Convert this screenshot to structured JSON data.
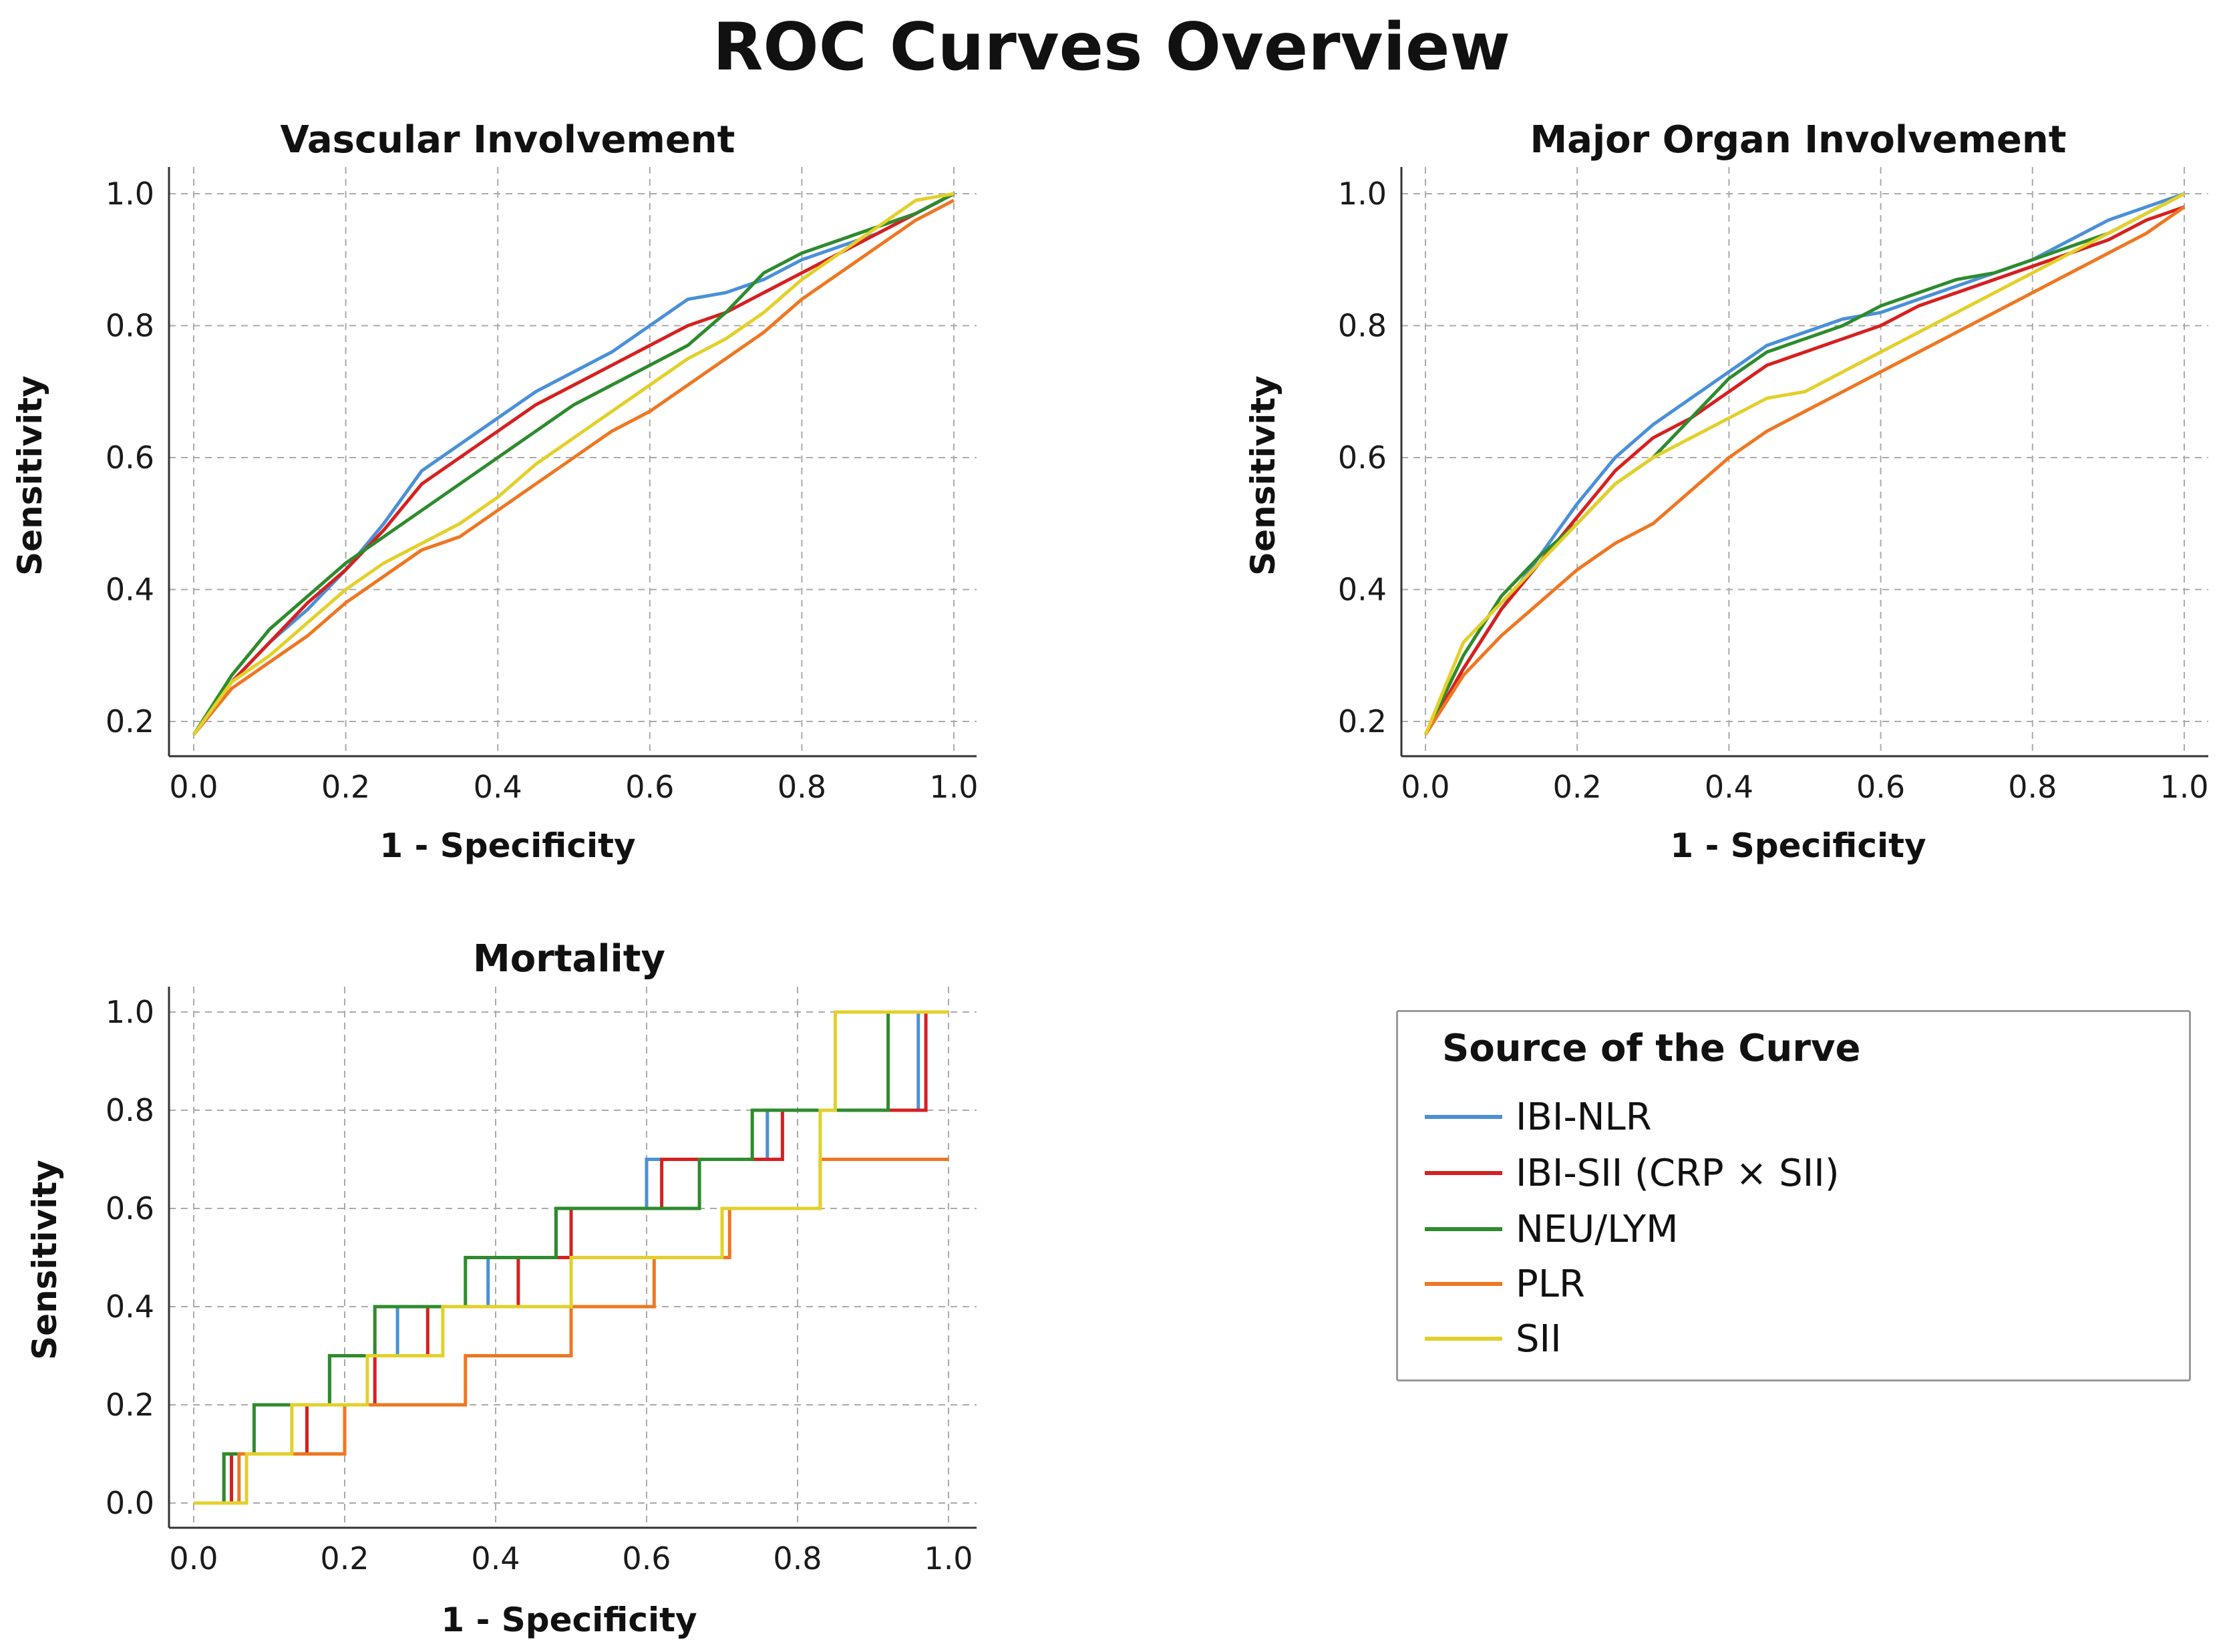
{
  "title": "ROC Curves Overview",
  "legend": {
    "title": "Source of the Curve",
    "items": [
      {
        "label": "IBI-NLR",
        "color": "#4a90d9"
      },
      {
        "label": "IBI-SII (CRP × SII)",
        "color": "#d62020"
      },
      {
        "label": "NEU/LYM",
        "color": "#2e8b2e"
      },
      {
        "label": "PLR",
        "color": "#ee7722"
      },
      {
        "label": "SII",
        "color": "#e3d02a"
      }
    ]
  },
  "chart_data": [
    {
      "type": "line",
      "title": "Vascular Involvement",
      "xlabel": "1 - Specificity",
      "ylabel": "Sensitivity",
      "xlim": [
        0,
        1
      ],
      "ylim": [
        0.16,
        1.0
      ],
      "xticks": [
        "0.0",
        "0.2",
        "0.4",
        "0.6",
        "0.8",
        "1.0"
      ],
      "yticks": [
        "0.2",
        "0.4",
        "0.6",
        "0.8",
        "1.0"
      ],
      "grid": true,
      "series": [
        {
          "name": "IBI-NLR",
          "x": [
            0,
            0.05,
            0.1,
            0.15,
            0.2,
            0.25,
            0.3,
            0.35,
            0.4,
            0.45,
            0.5,
            0.55,
            0.6,
            0.65,
            0.7,
            0.75,
            0.8,
            0.85,
            0.9,
            0.95,
            1.0
          ],
          "y": [
            0.18,
            0.26,
            0.32,
            0.37,
            0.43,
            0.5,
            0.58,
            0.62,
            0.66,
            0.7,
            0.73,
            0.76,
            0.8,
            0.84,
            0.85,
            0.87,
            0.9,
            0.92,
            0.94,
            0.97,
            1.0
          ]
        },
        {
          "name": "IBI-SII (CRP × SII)",
          "x": [
            0,
            0.05,
            0.1,
            0.15,
            0.2,
            0.25,
            0.3,
            0.35,
            0.4,
            0.45,
            0.5,
            0.55,
            0.6,
            0.65,
            0.7,
            0.75,
            0.8,
            0.85,
            0.9,
            0.95,
            1.0
          ],
          "y": [
            0.18,
            0.26,
            0.32,
            0.38,
            0.43,
            0.49,
            0.56,
            0.6,
            0.64,
            0.68,
            0.71,
            0.74,
            0.77,
            0.8,
            0.82,
            0.85,
            0.88,
            0.91,
            0.94,
            0.97,
            1.0
          ]
        },
        {
          "name": "NEU/LYM",
          "x": [
            0,
            0.05,
            0.1,
            0.15,
            0.2,
            0.25,
            0.3,
            0.35,
            0.4,
            0.45,
            0.5,
            0.55,
            0.6,
            0.65,
            0.7,
            0.75,
            0.8,
            0.85,
            0.9,
            0.95,
            1.0
          ],
          "y": [
            0.18,
            0.27,
            0.34,
            0.39,
            0.44,
            0.48,
            0.52,
            0.56,
            0.6,
            0.64,
            0.68,
            0.71,
            0.74,
            0.77,
            0.82,
            0.88,
            0.91,
            0.93,
            0.95,
            0.97,
            1.0
          ]
        },
        {
          "name": "PLR",
          "x": [
            0,
            0.05,
            0.1,
            0.15,
            0.2,
            0.25,
            0.3,
            0.35,
            0.4,
            0.45,
            0.5,
            0.55,
            0.6,
            0.65,
            0.7,
            0.75,
            0.8,
            0.85,
            0.9,
            0.95,
            1.0
          ],
          "y": [
            0.18,
            0.25,
            0.29,
            0.33,
            0.38,
            0.42,
            0.46,
            0.48,
            0.52,
            0.56,
            0.6,
            0.64,
            0.67,
            0.71,
            0.75,
            0.79,
            0.84,
            0.88,
            0.92,
            0.96,
            0.99
          ]
        },
        {
          "name": "SII",
          "x": [
            0,
            0.05,
            0.1,
            0.15,
            0.2,
            0.25,
            0.3,
            0.35,
            0.4,
            0.45,
            0.5,
            0.55,
            0.6,
            0.65,
            0.7,
            0.75,
            0.8,
            0.85,
            0.9,
            0.95,
            1.0
          ],
          "y": [
            0.18,
            0.26,
            0.3,
            0.35,
            0.4,
            0.44,
            0.47,
            0.5,
            0.54,
            0.59,
            0.63,
            0.67,
            0.71,
            0.75,
            0.78,
            0.82,
            0.87,
            0.91,
            0.95,
            0.99,
            1.0
          ]
        }
      ]
    },
    {
      "type": "line",
      "title": "Major Organ Involvement",
      "xlabel": "1 - Specificity",
      "ylabel": "Sensitivity",
      "xlim": [
        0,
        1
      ],
      "ylim": [
        0.16,
        1.0
      ],
      "xticks": [
        "0.0",
        "0.2",
        "0.4",
        "0.6",
        "0.8",
        "1.0"
      ],
      "yticks": [
        "0.2",
        "0.4",
        "0.6",
        "0.8",
        "1.0"
      ],
      "grid": true,
      "series": [
        {
          "name": "IBI-NLR",
          "x": [
            0,
            0.05,
            0.1,
            0.15,
            0.2,
            0.25,
            0.3,
            0.35,
            0.4,
            0.45,
            0.5,
            0.55,
            0.6,
            0.65,
            0.7,
            0.75,
            0.8,
            0.85,
            0.9,
            0.95,
            1.0
          ],
          "y": [
            0.18,
            0.28,
            0.37,
            0.45,
            0.53,
            0.6,
            0.65,
            0.69,
            0.73,
            0.77,
            0.79,
            0.81,
            0.82,
            0.84,
            0.86,
            0.88,
            0.9,
            0.93,
            0.96,
            0.98,
            1.0
          ]
        },
        {
          "name": "IBI-SII (CRP × SII)",
          "x": [
            0,
            0.05,
            0.1,
            0.15,
            0.2,
            0.25,
            0.3,
            0.35,
            0.4,
            0.45,
            0.5,
            0.55,
            0.6,
            0.65,
            0.7,
            0.75,
            0.8,
            0.85,
            0.9,
            0.95,
            1.0
          ],
          "y": [
            0.18,
            0.28,
            0.37,
            0.44,
            0.51,
            0.58,
            0.63,
            0.66,
            0.7,
            0.74,
            0.76,
            0.78,
            0.8,
            0.83,
            0.85,
            0.87,
            0.89,
            0.91,
            0.93,
            0.96,
            0.98
          ]
        },
        {
          "name": "NEU/LYM",
          "x": [
            0,
            0.05,
            0.1,
            0.15,
            0.2,
            0.25,
            0.3,
            0.35,
            0.4,
            0.45,
            0.5,
            0.55,
            0.6,
            0.65,
            0.7,
            0.75,
            0.8,
            0.85,
            0.9,
            0.95,
            1.0
          ],
          "y": [
            0.18,
            0.3,
            0.39,
            0.45,
            0.5,
            0.56,
            0.6,
            0.66,
            0.72,
            0.76,
            0.78,
            0.8,
            0.83,
            0.85,
            0.87,
            0.88,
            0.9,
            0.92,
            0.94,
            0.97,
            1.0
          ]
        },
        {
          "name": "PLR",
          "x": [
            0,
            0.05,
            0.1,
            0.15,
            0.2,
            0.25,
            0.3,
            0.35,
            0.4,
            0.45,
            0.5,
            0.55,
            0.6,
            0.65,
            0.7,
            0.75,
            0.8,
            0.85,
            0.9,
            0.95,
            1.0
          ],
          "y": [
            0.18,
            0.27,
            0.33,
            0.38,
            0.43,
            0.47,
            0.5,
            0.55,
            0.6,
            0.64,
            0.67,
            0.7,
            0.73,
            0.76,
            0.79,
            0.82,
            0.85,
            0.88,
            0.91,
            0.94,
            0.98
          ]
        },
        {
          "name": "SII",
          "x": [
            0,
            0.05,
            0.1,
            0.15,
            0.2,
            0.25,
            0.3,
            0.35,
            0.4,
            0.45,
            0.5,
            0.55,
            0.6,
            0.65,
            0.7,
            0.75,
            0.8,
            0.85,
            0.9,
            0.95,
            1.0
          ],
          "y": [
            0.18,
            0.32,
            0.38,
            0.44,
            0.5,
            0.56,
            0.6,
            0.63,
            0.66,
            0.69,
            0.7,
            0.73,
            0.76,
            0.79,
            0.82,
            0.85,
            0.88,
            0.91,
            0.94,
            0.97,
            1.0
          ]
        }
      ]
    },
    {
      "type": "line",
      "title": "Mortality",
      "xlabel": "1 - Specificity",
      "ylabel": "Sensitivity",
      "xlim": [
        0,
        1
      ],
      "ylim": [
        -0.04,
        1.0
      ],
      "xticks": [
        "0.0",
        "0.2",
        "0.4",
        "0.6",
        "0.8",
        "1.0"
      ],
      "yticks": [
        "0.0",
        "0.2",
        "0.4",
        "0.6",
        "0.8",
        "1.0"
      ],
      "grid": true,
      "series": [
        {
          "name": "IBI-NLR",
          "x": [
            0,
            0.04,
            0.04,
            0.15,
            0.15,
            0.18,
            0.18,
            0.27,
            0.27,
            0.39,
            0.39,
            0.48,
            0.48,
            0.6,
            0.6,
            0.76,
            0.76,
            0.96,
            0.96,
            1.0
          ],
          "y": [
            0,
            0,
            0.1,
            0.1,
            0.2,
            0.2,
            0.3,
            0.3,
            0.4,
            0.4,
            0.5,
            0.5,
            0.6,
            0.6,
            0.7,
            0.7,
            0.8,
            0.8,
            1.0,
            1.0
          ]
        },
        {
          "name": "IBI-SII (CRP × SII)",
          "x": [
            0,
            0.05,
            0.05,
            0.15,
            0.15,
            0.24,
            0.24,
            0.31,
            0.31,
            0.43,
            0.43,
            0.5,
            0.5,
            0.62,
            0.62,
            0.78,
            0.78,
            0.97,
            0.97,
            1.0
          ],
          "y": [
            0,
            0,
            0.1,
            0.1,
            0.2,
            0.2,
            0.3,
            0.3,
            0.4,
            0.4,
            0.5,
            0.5,
            0.6,
            0.6,
            0.7,
            0.7,
            0.8,
            0.8,
            1.0,
            1.0
          ]
        },
        {
          "name": "NEU/LYM",
          "x": [
            0,
            0.04,
            0.04,
            0.08,
            0.08,
            0.18,
            0.18,
            0.24,
            0.24,
            0.36,
            0.36,
            0.48,
            0.48,
            0.67,
            0.67,
            0.74,
            0.74,
            0.92,
            0.92,
            1.0
          ],
          "y": [
            0,
            0,
            0.1,
            0.1,
            0.2,
            0.2,
            0.3,
            0.3,
            0.4,
            0.4,
            0.5,
            0.5,
            0.6,
            0.6,
            0.7,
            0.7,
            0.8,
            0.8,
            1.0,
            1.0
          ]
        },
        {
          "name": "PLR",
          "x": [
            0,
            0.06,
            0.06,
            0.2,
            0.2,
            0.36,
            0.36,
            0.5,
            0.5,
            0.61,
            0.61,
            0.71,
            0.71,
            0.83,
            0.83,
            1.0
          ],
          "y": [
            0,
            0,
            0.1,
            0.1,
            0.2,
            0.2,
            0.3,
            0.3,
            0.4,
            0.4,
            0.5,
            0.5,
            0.6,
            0.6,
            0.7,
            0.7
          ]
        },
        {
          "name": "SII",
          "x": [
            0,
            0.07,
            0.07,
            0.13,
            0.13,
            0.23,
            0.23,
            0.33,
            0.33,
            0.5,
            0.5,
            0.7,
            0.7,
            0.83,
            0.83,
            0.85,
            0.85,
            1.0
          ],
          "y": [
            0,
            0,
            0.1,
            0.1,
            0.2,
            0.2,
            0.3,
            0.3,
            0.4,
            0.4,
            0.5,
            0.5,
            0.6,
            0.6,
            0.8,
            0.8,
            1.0,
            1.0
          ]
        }
      ]
    }
  ]
}
